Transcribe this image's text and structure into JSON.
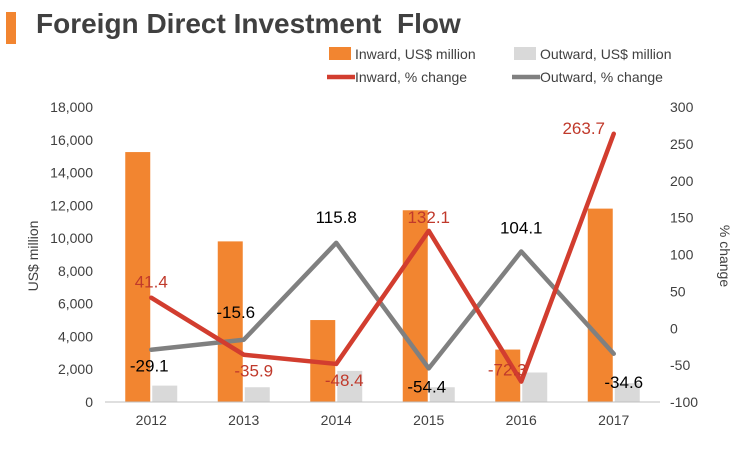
{
  "header": {
    "title": "Foreign Direct Investment  Flow"
  },
  "colors": {
    "accent": "#F28530",
    "inward_bar": "#F28530",
    "outward_bar": "#D9D9D9",
    "inward_line": "#D23D2F",
    "outward_line": "#808080",
    "text": "#404040",
    "label_inward": "#C0392B",
    "label_outward": "#000000"
  },
  "chart_data": {
    "type": "bar",
    "title": "Foreign Direct Investment  Flow",
    "categories": [
      "2012",
      "2013",
      "2014",
      "2015",
      "2016",
      "2017"
    ],
    "ylabel": "US$ million",
    "y2label": "% change",
    "ylim": [
      0,
      18000
    ],
    "y2lim": [
      -100,
      300
    ],
    "yticks": [
      "0",
      "2,000",
      "4,000",
      "6,000",
      "8,000",
      "10,000",
      "12,000",
      "14,000",
      "16,000",
      "18,000"
    ],
    "y2ticks": [
      "-100",
      "-50",
      "0",
      "50",
      "100",
      "150",
      "200",
      "250",
      "300"
    ],
    "series": [
      {
        "name": "Inward, US$ million",
        "kind": "bar",
        "axis": "left",
        "values": [
          15250,
          9800,
          5000,
          11700,
          3200,
          11800
        ]
      },
      {
        "name": "Outward, US$ million",
        "kind": "bar",
        "axis": "left",
        "values": [
          1000,
          900,
          1900,
          900,
          1800,
          1150
        ]
      },
      {
        "name": "Inward, % change",
        "kind": "line",
        "axis": "right",
        "values": [
          41.4,
          -35.9,
          -48.4,
          132.1,
          -72.3,
          263.7
        ],
        "labels": [
          "41.4",
          "-35.9",
          "-48.4",
          "132.1",
          "-72.3",
          "263.7"
        ]
      },
      {
        "name": "Outward, % change",
        "kind": "line",
        "axis": "right",
        "values": [
          -29.1,
          -15.6,
          115.8,
          -54.4,
          104.1,
          -34.6
        ],
        "labels": [
          "-29.1",
          "-15.6",
          "115.8",
          "-54.4",
          "104.1",
          "-34.6"
        ]
      }
    ]
  }
}
